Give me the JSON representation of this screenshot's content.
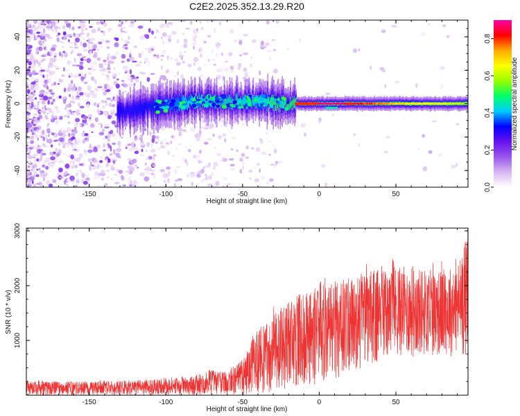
{
  "chart_data": [
    {
      "type": "heatmap",
      "title": "C2E2.2025.352.13.29.R20",
      "xlabel": "Height of straight line (km)",
      "ylabel": "Frequency (Hz)",
      "xlim": [
        -191,
        97
      ],
      "ylim": [
        -50,
        50
      ],
      "xticks": [
        -150,
        -100,
        -50,
        0,
        50
      ],
      "xtick_labels": [
        "-150",
        "-100",
        "-50",
        "0",
        "50"
      ],
      "yticks": [
        -40,
        -20,
        0,
        20,
        40
      ],
      "ytick_labels": [
        "-40",
        "-20",
        "0",
        "20",
        "40"
      ],
      "colorbar": {
        "label": "Normalized spectral amplitude",
        "range": [
          0,
          0.9
        ],
        "ticks": [
          0,
          0.2,
          0.4,
          0.6,
          0.8
        ],
        "tick_labels": [
          "0.0",
          "0.2",
          "0.4",
          "0.6",
          "0.8"
        ],
        "colors": [
          "#ffffff",
          "#d8b8f0",
          "#9955ee",
          "#6611ee",
          "#0000ff",
          "#00ccff",
          "#00ff66",
          "#99ff00",
          "#ffff00",
          "#ffaa00",
          "#ff0000",
          "#ff00aa"
        ]
      },
      "description_points": [
        {
          "x": -130,
          "freq_center": -5,
          "amplitude": 0.3
        },
        {
          "x": -100,
          "freq_center": -1,
          "amplitude": 0.35
        },
        {
          "x": -75,
          "freq_center": 2,
          "amplitude": 0.45
        },
        {
          "x": -50,
          "freq_center": 1,
          "amplitude": 0.45
        },
        {
          "x": -35,
          "freq_center": 1,
          "amplitude": 0.4
        },
        {
          "x": -15,
          "freq_center": 0,
          "amplitude": 0.85
        },
        {
          "x": 0,
          "freq_center": 0,
          "amplitude": 0.9
        },
        {
          "x": 20,
          "freq_center": 0,
          "amplitude": 0.85
        },
        {
          "x": 50,
          "freq_center": 0,
          "amplitude": 0.7
        },
        {
          "x": 90,
          "freq_center": 0,
          "amplitude": 0.6
        }
      ]
    },
    {
      "type": "line",
      "xlabel": "Height of straight line (km)",
      "ylabel": "SNR (10 * v/v)",
      "xlim": [
        -191,
        97
      ],
      "ylim": [
        0,
        3050
      ],
      "xticks": [
        -150,
        -100,
        -50,
        0,
        50
      ],
      "xtick_labels": [
        "-150",
        "-100",
        "-50",
        "0",
        "50"
      ],
      "yticks": [
        1000,
        2000,
        3000
      ],
      "ytick_labels": [
        "1000",
        "2000",
        "3000"
      ],
      "color": "#ee3333",
      "envelope_x": [
        -191,
        -150,
        -120,
        -100,
        -80,
        -70,
        -60,
        -50,
        -40,
        -30,
        -20,
        -10,
        0,
        10,
        20,
        30,
        40,
        50,
        60,
        70,
        80,
        90,
        97
      ],
      "envelope_low": [
        0,
        0,
        0,
        0,
        0,
        0,
        0,
        0,
        20,
        50,
        100,
        150,
        200,
        300,
        400,
        500,
        600,
        700,
        700,
        700,
        700,
        700,
        700
      ],
      "envelope_high": [
        250,
        250,
        260,
        300,
        350,
        450,
        400,
        650,
        1200,
        1500,
        1700,
        1900,
        1950,
        2050,
        2150,
        2250,
        2300,
        2350,
        2350,
        2300,
        2300,
        2400,
        3000
      ]
    }
  ]
}
